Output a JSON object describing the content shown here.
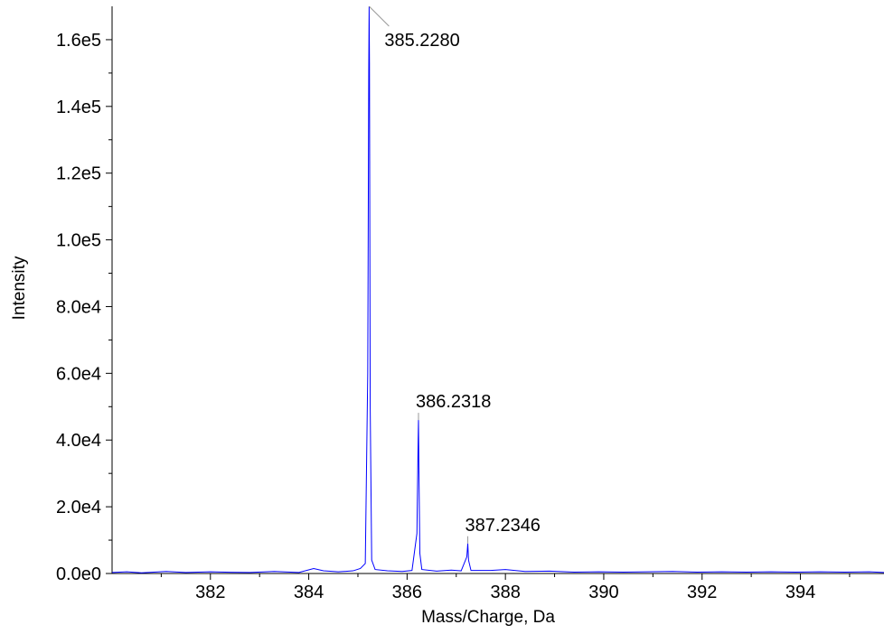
{
  "chart_data": {
    "type": "line",
    "title": "",
    "xlabel": "Mass/Charge, Da",
    "ylabel": "Intensity",
    "xlim": [
      380.0,
      395.7
    ],
    "ylim": [
      0,
      170000
    ],
    "grid": false,
    "legend": "none",
    "x_ticks": [
      382,
      384,
      386,
      388,
      390,
      392,
      394
    ],
    "y_ticks": [
      {
        "value": 0,
        "label": "0.0e0"
      },
      {
        "value": 20000,
        "label": "2.0e4"
      },
      {
        "value": 40000,
        "label": "4.0e4"
      },
      {
        "value": 60000,
        "label": "6.0e4"
      },
      {
        "value": 80000,
        "label": "8.0e4"
      },
      {
        "value": 100000,
        "label": "1.0e5"
      },
      {
        "value": 120000,
        "label": "1.2e5"
      },
      {
        "value": 140000,
        "label": "1.4e5"
      },
      {
        "value": 160000,
        "label": "1.6e5"
      }
    ],
    "peaks": [
      {
        "label": "385.2280",
        "mz": 385.228,
        "intensity": 170000
      },
      {
        "label": "386.2318",
        "mz": 386.2318,
        "intensity": 46000
      },
      {
        "label": "387.2346",
        "mz": 387.2346,
        "intensity": 9000
      }
    ],
    "series": [
      {
        "color": "#0000ff",
        "points": [
          [
            380.0,
            300
          ],
          [
            380.3,
            500
          ],
          [
            380.6,
            200
          ],
          [
            381.1,
            600
          ],
          [
            381.5,
            300
          ],
          [
            382.0,
            500
          ],
          [
            382.3,
            400
          ],
          [
            382.8,
            300
          ],
          [
            383.3,
            600
          ],
          [
            383.8,
            300
          ],
          [
            384.1,
            1500
          ],
          [
            384.3,
            800
          ],
          [
            384.6,
            500
          ],
          [
            384.9,
            800
          ],
          [
            385.05,
            1500
          ],
          [
            385.15,
            3000
          ],
          [
            385.2,
            60000
          ],
          [
            385.22,
            150000
          ],
          [
            385.228,
            170000
          ],
          [
            385.235,
            153000
          ],
          [
            385.25,
            50000
          ],
          [
            385.28,
            4000
          ],
          [
            385.35,
            1200
          ],
          [
            385.6,
            800
          ],
          [
            385.9,
            600
          ],
          [
            386.1,
            900
          ],
          [
            386.2,
            12000
          ],
          [
            386.225,
            40000
          ],
          [
            386.2318,
            46000
          ],
          [
            386.24,
            32000
          ],
          [
            386.26,
            6000
          ],
          [
            386.3,
            1200
          ],
          [
            386.6,
            700
          ],
          [
            386.9,
            1000
          ],
          [
            387.1,
            800
          ],
          [
            387.215,
            5000
          ],
          [
            387.2346,
            9000
          ],
          [
            387.25,
            4000
          ],
          [
            387.3,
            900
          ],
          [
            387.7,
            900
          ],
          [
            388.0,
            1200
          ],
          [
            388.4,
            600
          ],
          [
            388.9,
            700
          ],
          [
            389.4,
            400
          ],
          [
            389.9,
            500
          ],
          [
            390.4,
            400
          ],
          [
            390.9,
            500
          ],
          [
            391.4,
            600
          ],
          [
            391.9,
            400
          ],
          [
            392.4,
            500
          ],
          [
            392.9,
            400
          ],
          [
            393.4,
            500
          ],
          [
            393.9,
            400
          ],
          [
            394.4,
            500
          ],
          [
            394.9,
            400
          ],
          [
            395.4,
            500
          ],
          [
            395.7,
            300
          ]
        ]
      }
    ]
  }
}
